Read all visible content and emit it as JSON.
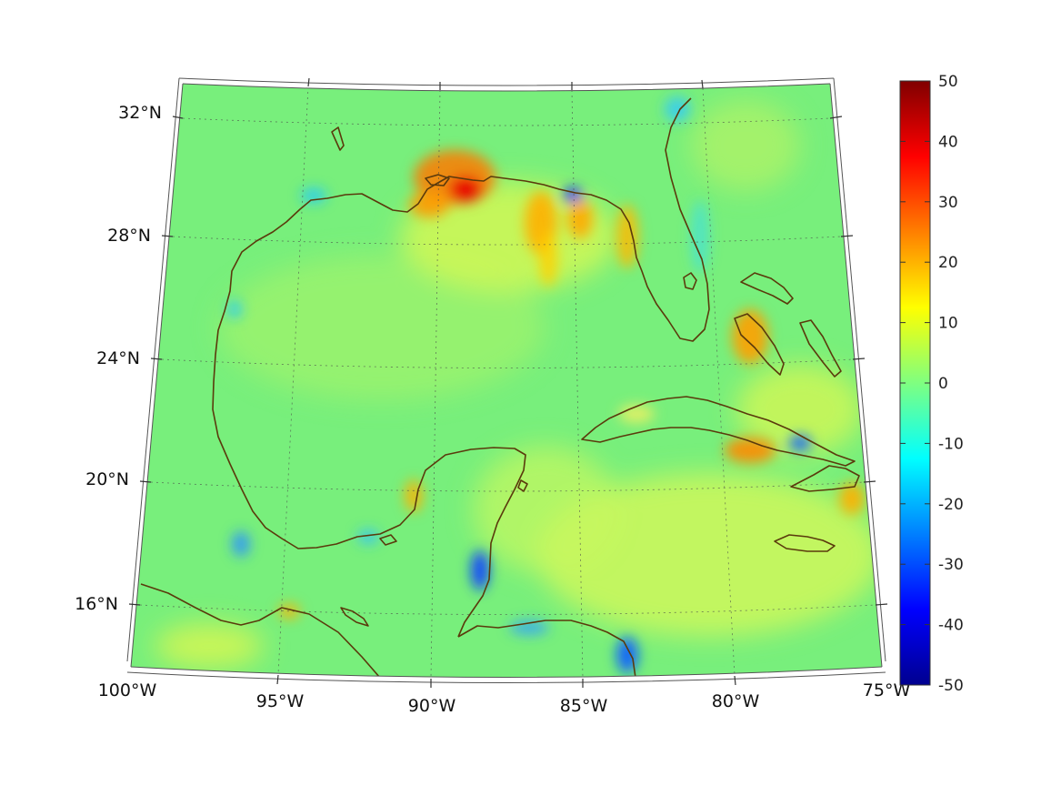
{
  "map": {
    "projection": "conic",
    "lon_range": [
      -100,
      -75
    ],
    "lat_range": [
      14,
      33
    ],
    "grid": true,
    "lon_labels": [
      "100°W",
      "95°W",
      "90°W",
      "85°W",
      "80°W",
      "75°W"
    ],
    "lat_labels": [
      "32°N",
      "28°N",
      "24°N",
      "20°N",
      "16°N"
    ],
    "coastline_color": "#5a3a0c",
    "background_field": "#7cf07a",
    "anomalies": [
      {
        "region": "mississippi-delta",
        "value": 35
      },
      {
        "region": "apalachicola",
        "value": -30
      },
      {
        "region": "nw-florida-shelf",
        "value": 18
      },
      {
        "region": "bahamas-bank",
        "value": 18
      },
      {
        "region": "se-cuba",
        "value": 22
      },
      {
        "region": "east-belize",
        "value": -28
      },
      {
        "region": "honduras-north-coast",
        "value": -25
      },
      {
        "region": "florida-straits",
        "value": -8
      },
      {
        "region": "windward-passage",
        "value": -15
      }
    ]
  },
  "colorbar": {
    "colormap": "jet",
    "min": -50,
    "max": 50,
    "ticks": [
      "50",
      "40",
      "30",
      "20",
      "10",
      "0",
      "-10",
      "-20",
      "-30",
      "-40",
      "-50"
    ],
    "colors": [
      "#800000",
      "#ff0000",
      "#ffff00",
      "#00ffff",
      "#0000ff",
      "#00008f"
    ]
  }
}
